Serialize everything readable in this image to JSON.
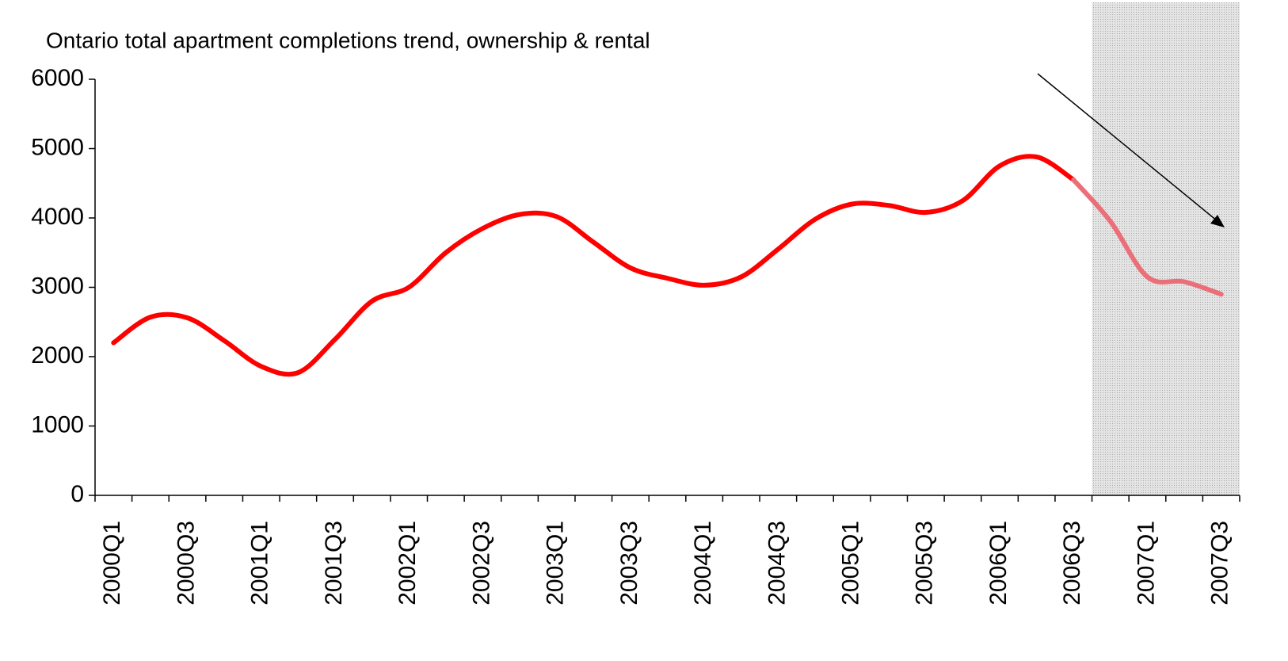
{
  "chart_data": {
    "type": "line",
    "title": "Ontario total apartment completions trend, ownership & rental",
    "categories": [
      "2000Q1",
      null,
      "2000Q3",
      null,
      "2001Q1",
      null,
      "2001Q3",
      null,
      "2002Q1",
      null,
      "2002Q3",
      null,
      "2003Q1",
      null,
      "2003Q3",
      null,
      "2004Q1",
      null,
      "2004Q3",
      null,
      "2005Q1",
      null,
      "2005Q3",
      null,
      "2006Q1",
      null,
      "2006Q3",
      null,
      "2007Q1",
      null,
      "2007Q3"
    ],
    "series": [
      {
        "color": "#ff0000",
        "values": [
          2200,
          2570,
          2560,
          2230,
          1860,
          1770,
          2250,
          2800,
          3000,
          3500,
          3850,
          4050,
          4020,
          3650,
          3280,
          3130,
          3030,
          3150,
          3550,
          3980,
          4200,
          4180,
          4080,
          4250,
          4750,
          4880,
          4550,
          null,
          null,
          null,
          null
        ]
      },
      {
        "color": "#ea6f78",
        "values": [
          null,
          null,
          null,
          null,
          null,
          null,
          null,
          null,
          null,
          null,
          null,
          null,
          null,
          null,
          null,
          null,
          null,
          null,
          null,
          null,
          null,
          null,
          null,
          null,
          null,
          null,
          4550,
          3950,
          3150,
          3080,
          2900
        ]
      }
    ],
    "ylim": [
      0,
      6000
    ],
    "yticks": [
      0,
      1000,
      2000,
      3000,
      4000,
      5000,
      6000
    ],
    "grid": false
  }
}
